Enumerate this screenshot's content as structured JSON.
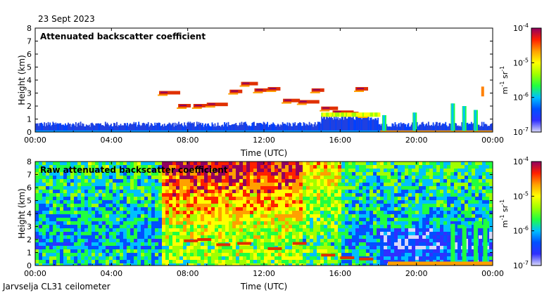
{
  "header": {
    "date": "23 Sept 2023"
  },
  "footer": {
    "station": "Jarvselja CL31 ceilometer"
  },
  "colors": {
    "colormap": [
      "#d8d8f8",
      "#3030ff",
      "#0050ff",
      "#00c0ff",
      "#20ff40",
      "#a0ff00",
      "#ffff00",
      "#ffa000",
      "#ff2000",
      "#900060"
    ]
  },
  "chart_data": [
    {
      "type": "heatmap",
      "title": "Attenuated backscatter coefficient",
      "xlabel": "Time (UTC)",
      "ylabel": "Height (km)",
      "x_ticks": [
        "00:00",
        "04:00",
        "08:00",
        "12:00",
        "16:00",
        "20:00",
        "00:00"
      ],
      "xlim": [
        0,
        24
      ],
      "ylim": [
        0,
        8
      ],
      "y_ticks": [
        "0",
        "1",
        "2",
        "3",
        "4",
        "5",
        "6",
        "7",
        "8"
      ],
      "colorbar": {
        "label": "m-1 sr-1",
        "scale": "log",
        "range": [
          1e-07,
          0.0001
        ],
        "ticks": [
          {
            "base": "10",
            "exp": "-4"
          },
          {
            "base": "10",
            "exp": "-5"
          },
          {
            "base": "10",
            "exp": "-6"
          },
          {
            "base": "10",
            "exp": "-7"
          }
        ]
      },
      "features": [
        {
          "kind": "boundary_layer",
          "x_start": 0,
          "x_end": 24,
          "top_km": 0.5
        },
        {
          "kind": "cloud_layer",
          "x_start": 7.5,
          "x_end": 9.5,
          "height_km": 2.0
        },
        {
          "kind": "cloud_layer",
          "x_start": 10.5,
          "x_end": 15.5,
          "height_km": 3.2
        },
        {
          "kind": "aerosol_layer",
          "x_start": 15,
          "x_end": 18,
          "height_km": 1.3
        },
        {
          "kind": "precipitation",
          "x_start": 21.5,
          "x_end": 23.5,
          "height_km": 2.2
        }
      ]
    },
    {
      "type": "heatmap",
      "title": "Raw attenuated backscatter coefficient",
      "xlabel": "Time (UTC)",
      "ylabel": "Height (km)",
      "x_ticks": [
        "00:00",
        "04:00",
        "08:00",
        "12:00",
        "16:00",
        "20:00",
        "00:00"
      ],
      "xlim": [
        0,
        24
      ],
      "ylim": [
        0,
        8
      ],
      "y_ticks": [
        "0",
        "1",
        "2",
        "3",
        "4",
        "5",
        "6",
        "7",
        "8"
      ],
      "colorbar": {
        "label": "m-1 sr-1",
        "scale": "log",
        "range": [
          1e-07,
          0.0001
        ],
        "ticks": [
          {
            "base": "10",
            "exp": "-4"
          },
          {
            "base": "10",
            "exp": "-5"
          },
          {
            "base": "10",
            "exp": "-6"
          },
          {
            "base": "10",
            "exp": "-7"
          }
        ]
      },
      "features": [
        {
          "kind": "high_noise",
          "x_start": 6.5,
          "x_end": 14,
          "height_km": 7.5
        },
        {
          "kind": "boundary_layer",
          "x_start": 0,
          "x_end": 24,
          "top_km": 1.5
        },
        {
          "kind": "precipitation",
          "x_start": 21.5,
          "x_end": 23.5,
          "height_km": 3.2
        }
      ]
    }
  ]
}
